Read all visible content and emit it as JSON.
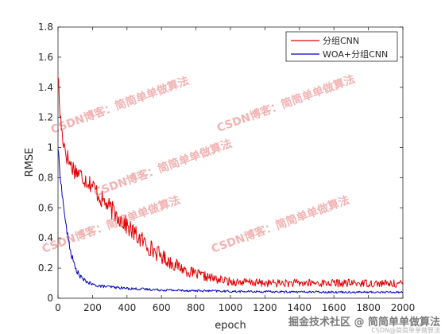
{
  "chart_data": {
    "type": "line",
    "title": "",
    "xlabel": "epoch",
    "ylabel": "RMSE",
    "xlim": [
      0,
      2000
    ],
    "ylim": [
      0,
      1.8
    ],
    "xticks": [
      0,
      200,
      400,
      600,
      800,
      1000,
      1200,
      1400,
      1600,
      1800,
      2000
    ],
    "yticks": [
      0,
      0.2,
      0.4,
      0.6,
      0.8,
      1,
      1.2,
      1.4,
      1.6,
      1.8
    ],
    "grid": false,
    "legend_position": "top-right",
    "series": [
      {
        "name": "分组CNN",
        "color": "#e00000",
        "x": [
          0,
          10,
          25,
          50,
          75,
          100,
          150,
          200,
          250,
          300,
          350,
          400,
          450,
          500,
          550,
          600,
          650,
          700,
          750,
          800,
          850,
          900,
          950,
          1000,
          1100,
          1200,
          1400,
          1600,
          1800,
          2000
        ],
        "y": [
          1.5,
          1.25,
          1.08,
          0.95,
          0.88,
          0.85,
          0.8,
          0.75,
          0.66,
          0.6,
          0.54,
          0.48,
          0.42,
          0.37,
          0.32,
          0.28,
          0.24,
          0.21,
          0.18,
          0.16,
          0.145,
          0.13,
          0.12,
          0.11,
          0.105,
          0.1,
          0.1,
          0.1,
          0.1,
          0.095
        ]
      },
      {
        "name": "WOA+分组CNN",
        "color": "#0000c0",
        "x": [
          0,
          10,
          25,
          50,
          75,
          100,
          125,
          150,
          200,
          250,
          300,
          350,
          400,
          500,
          600,
          700,
          800,
          900,
          1000,
          1200,
          1400,
          1600,
          1800,
          2000
        ],
        "y": [
          1.0,
          0.85,
          0.68,
          0.45,
          0.3,
          0.2,
          0.15,
          0.12,
          0.09,
          0.08,
          0.075,
          0.07,
          0.065,
          0.06,
          0.055,
          0.052,
          0.05,
          0.048,
          0.045,
          0.043,
          0.042,
          0.041,
          0.04,
          0.04
        ]
      }
    ]
  },
  "watermarks": [
    "CSDN博客：简简单单做算法",
    "CSDN博客：简简单单做算法",
    "CSDN博客：简简单单做算法",
    "CSDN博客：简简单单做算法",
    "CSDN博客：简简单单做算法"
  ],
  "footer_watermark": "掘金技术社区 @ 简简单单做算法",
  "footer_watermark_small": "CSDN@简简单单做算法"
}
